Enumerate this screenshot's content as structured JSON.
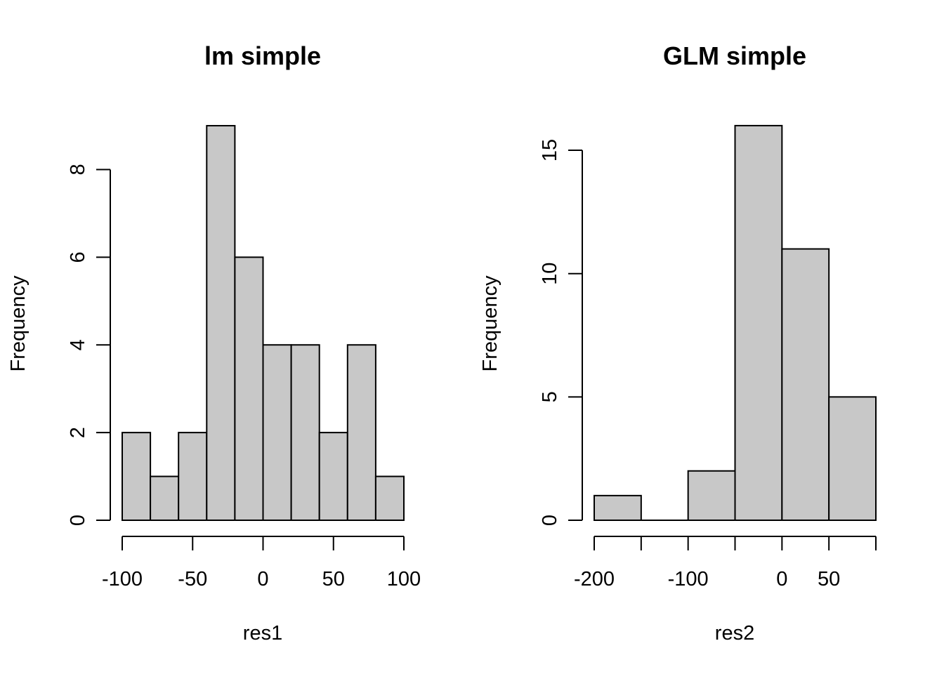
{
  "chart_data": [
    {
      "type": "bar",
      "title": "lm simple",
      "xlabel": "res1",
      "ylabel": "Frequency",
      "bin_edges": [
        -100,
        -80,
        -60,
        -40,
        -20,
        0,
        20,
        40,
        60,
        80,
        100
      ],
      "values": [
        2,
        1,
        2,
        9,
        6,
        4,
        4,
        2,
        4,
        1
      ],
      "xlim": [
        -100,
        100
      ],
      "ylim": [
        0,
        9
      ],
      "x_ticks": [
        -100,
        -50,
        0,
        50,
        100
      ],
      "x_tick_labels": [
        "-100",
        "-50",
        "0",
        "50",
        "100"
      ],
      "y_ticks": [
        0,
        2,
        4,
        6,
        8
      ],
      "y_tick_labels": [
        "0",
        "2",
        "4",
        "6",
        "8"
      ],
      "grid": false,
      "bar_color": "#c8c8c8"
    },
    {
      "type": "bar",
      "title": "GLM simple",
      "xlabel": "res2",
      "ylabel": "Frequency",
      "bin_edges": [
        -200,
        -150,
        -100,
        -50,
        0,
        50,
        100
      ],
      "values": [
        1,
        0,
        2,
        16,
        11,
        5
      ],
      "xlim": [
        -200,
        100
      ],
      "ylim": [
        0,
        16
      ],
      "x_ticks": [
        -200,
        -150,
        -100,
        -50,
        0,
        50,
        100
      ],
      "x_tick_labels": [
        "-200",
        "",
        "-100",
        "",
        "0",
        "50",
        ""
      ],
      "y_ticks": [
        0,
        5,
        10,
        15
      ],
      "y_tick_labels": [
        "0",
        "5",
        "10",
        "15"
      ],
      "grid": false,
      "bar_color": "#c8c8c8"
    }
  ]
}
